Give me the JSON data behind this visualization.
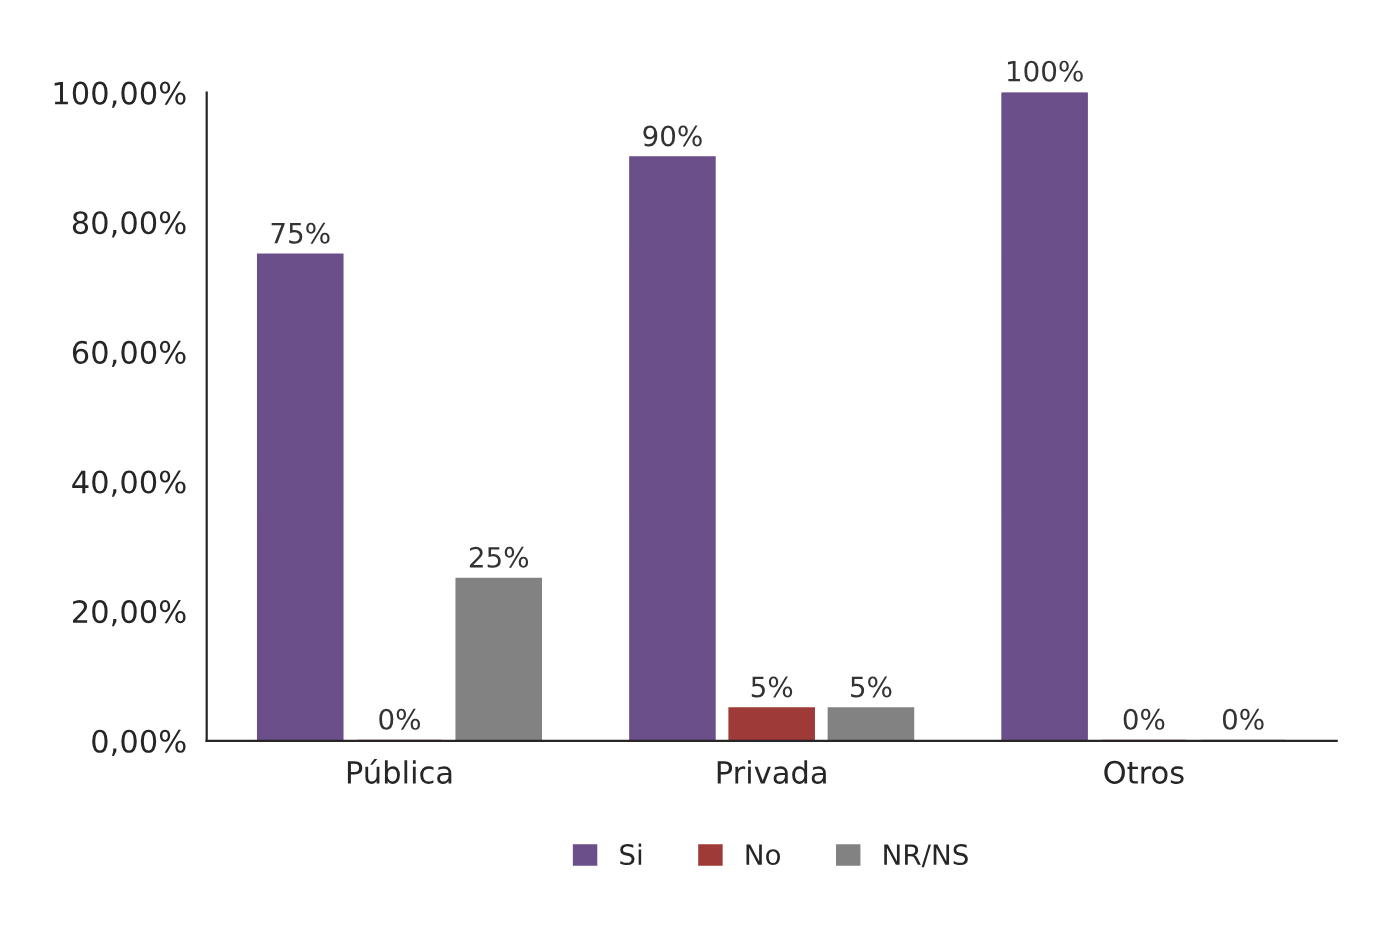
{
  "chart_data": {
    "type": "bar",
    "categories": [
      "Pública",
      "Privada",
      "Otros"
    ],
    "series": [
      {
        "name": "Si",
        "color": "#6b4f8a",
        "values": [
          75,
          90,
          100
        ],
        "value_labels": [
          "75%",
          "90%",
          "100%"
        ]
      },
      {
        "name": "No",
        "color": "#9e3b39",
        "values": [
          0,
          5,
          0
        ],
        "value_labels": [
          "0%",
          "5%",
          "0%"
        ]
      },
      {
        "name": "NR/NS",
        "color": "#828282",
        "values": [
          25,
          5,
          0
        ],
        "value_labels": [
          "25%",
          "5%",
          "0%"
        ]
      }
    ],
    "ylim": [
      0,
      100
    ],
    "yticks": [
      {
        "value": 0,
        "label": "0,00%"
      },
      {
        "value": 20,
        "label": "20,00%"
      },
      {
        "value": 40,
        "label": "40,00%"
      },
      {
        "value": 60,
        "label": "60,00%"
      },
      {
        "value": 80,
        "label": "80,00%"
      },
      {
        "value": 100,
        "label": "100,00%"
      }
    ],
    "legend": "bottom",
    "grid": false
  }
}
